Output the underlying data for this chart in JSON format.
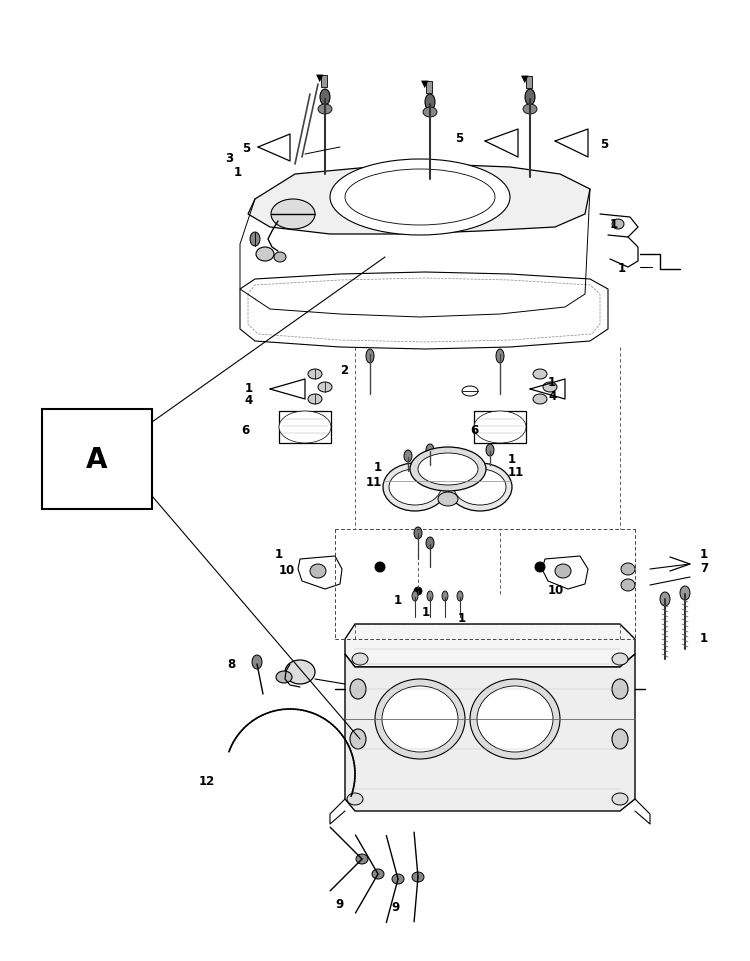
{
  "background_color": "#ffffff",
  "fig_width": 7.5,
  "fig_height": 9.62,
  "dpi": 100,
  "img_extent": [
    0,
    750,
    0,
    962
  ]
}
